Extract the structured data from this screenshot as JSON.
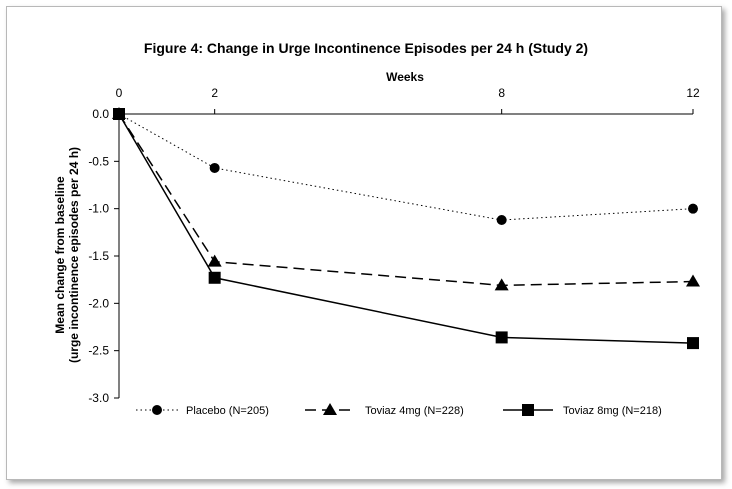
{
  "chart_data": {
    "type": "line",
    "title": "Figure 4: Change in Urge Incontinence Episodes per 24 h (Study 2)",
    "xlabel": "Weeks",
    "ylabel_lines": [
      "Mean change from baseline",
      "(urge incontinence episodes per 24 h)"
    ],
    "x_ticks": [
      0,
      2,
      8,
      12
    ],
    "x_tick_labels": [
      "0",
      "2",
      "8",
      "12"
    ],
    "y_ticks": [
      0,
      -0.5,
      -1.0,
      -1.5,
      -2.0,
      -2.5,
      -3.0
    ],
    "y_tick_labels": [
      "0.0",
      "-0.5",
      "-1.0",
      "-1.5",
      "-2.0",
      "-2.5",
      "-3.0"
    ],
    "xlim": [
      0,
      12
    ],
    "ylim": [
      -3.0,
      0
    ],
    "x_axis_position": "top",
    "grid": false,
    "legend_position": "bottom",
    "series": [
      {
        "name": "Placebo (N=205)",
        "x": [
          0,
          2,
          8,
          12
        ],
        "values": [
          0,
          -0.57,
          -1.12,
          -1.0
        ],
        "marker": "circle",
        "line_style": "dotted"
      },
      {
        "name": "Toviaz 4mg (N=228)",
        "x": [
          0,
          2,
          8,
          12
        ],
        "values": [
          0,
          -1.56,
          -1.81,
          -1.77
        ],
        "marker": "triangle",
        "line_style": "dashed"
      },
      {
        "name": "Toviaz 8mg (N=218)",
        "x": [
          0,
          2,
          8,
          12
        ],
        "values": [
          0,
          -1.73,
          -2.36,
          -2.42
        ],
        "marker": "square",
        "line_style": "solid"
      }
    ]
  }
}
